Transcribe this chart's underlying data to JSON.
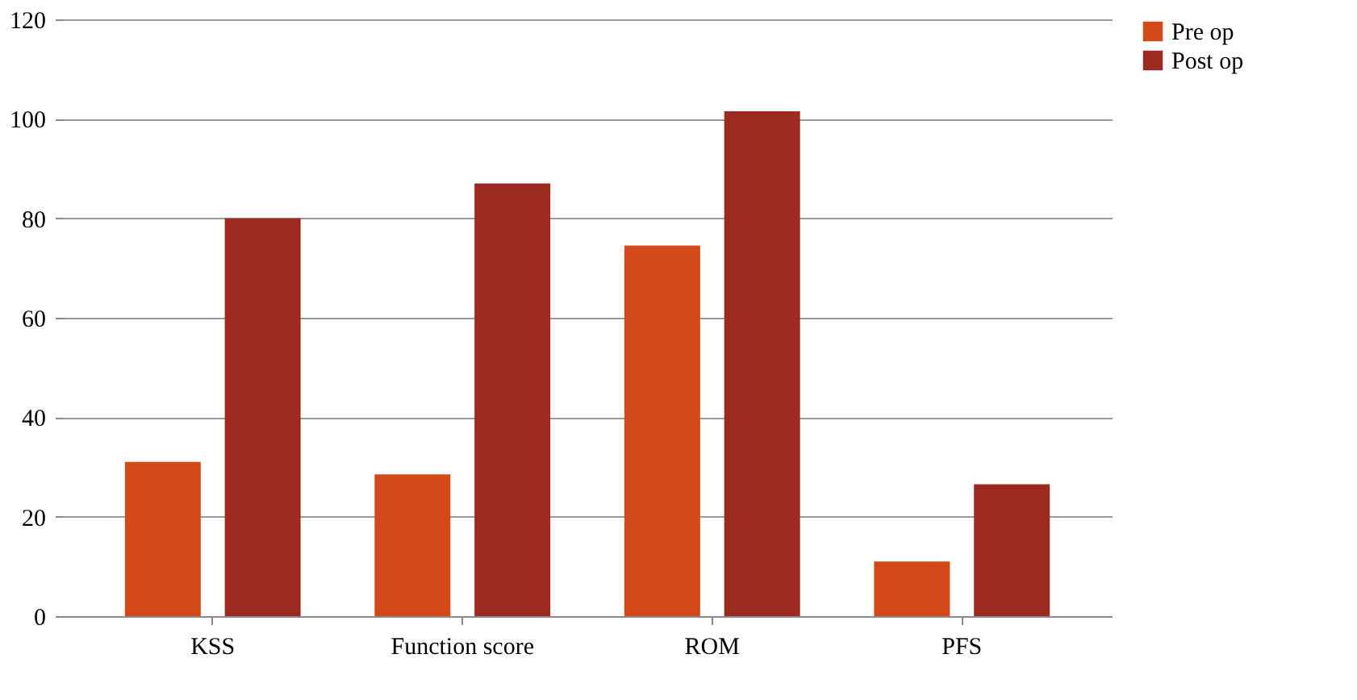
{
  "chart_data": {
    "type": "bar",
    "categories": [
      "KSS",
      "Function score",
      "ROM",
      "PFS"
    ],
    "series": [
      {
        "name": "Pre op",
        "color": "#d24a19",
        "values": [
          31,
          28.5,
          74.5,
          11
        ]
      },
      {
        "name": "Post op",
        "color": "#9b2b20",
        "values": [
          80,
          87,
          101.5,
          26.5
        ]
      }
    ],
    "ylim": [
      0,
      120
    ],
    "yticks": [
      0,
      20,
      40,
      60,
      80,
      100,
      120
    ],
    "grid": "y",
    "legend": "right"
  }
}
